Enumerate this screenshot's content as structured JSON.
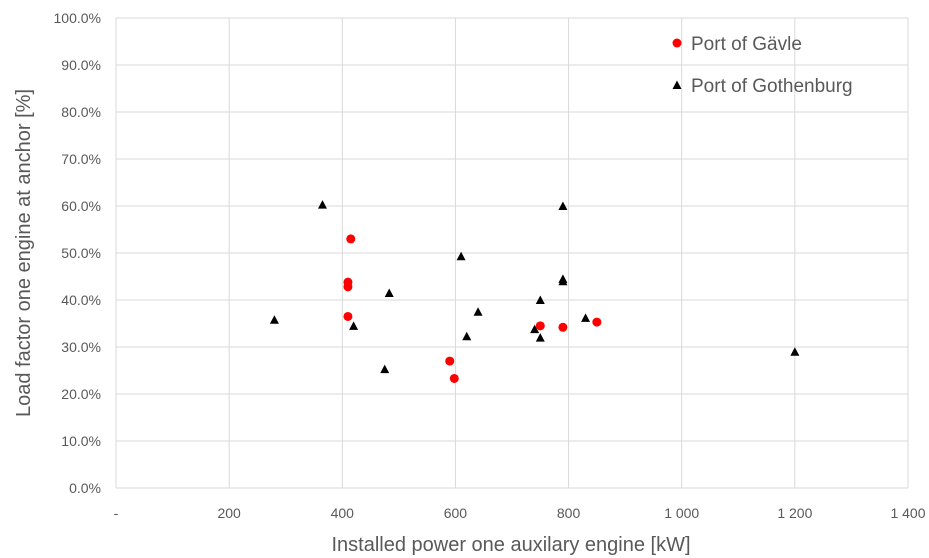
{
  "chart_data": {
    "type": "scatter",
    "xlabel": "Installed power one auxilary engine [kW]",
    "ylabel": "Load factor one engine at anchor [%]",
    "xlim": [
      0,
      1400
    ],
    "ylim": [
      0,
      100
    ],
    "x_ticks": [
      0,
      200,
      400,
      600,
      800,
      1000,
      1200,
      1400
    ],
    "x_tick_labels": [
      "-",
      "200",
      "400",
      "600",
      "800",
      "1 000",
      "1 200",
      "1 400"
    ],
    "y_ticks": [
      0,
      10,
      20,
      30,
      40,
      50,
      60,
      70,
      80,
      90,
      100
    ],
    "y_tick_labels": [
      "0.0%",
      "10.0%",
      "20.0%",
      "30.0%",
      "40.0%",
      "50.0%",
      "60.0%",
      "70.0%",
      "80.0%",
      "90.0%",
      "100.0%"
    ],
    "grid": true,
    "legend_position": "top-right",
    "series": [
      {
        "name": "Port of Gävle",
        "marker": "circle",
        "color": "#ff0000",
        "points": [
          {
            "x": 415,
            "y": 53.0
          },
          {
            "x": 410,
            "y": 43.8
          },
          {
            "x": 410,
            "y": 42.8
          },
          {
            "x": 410,
            "y": 36.5
          },
          {
            "x": 590,
            "y": 27.0
          },
          {
            "x": 598,
            "y": 23.3
          },
          {
            "x": 750,
            "y": 34.5
          },
          {
            "x": 790,
            "y": 34.2
          },
          {
            "x": 850,
            "y": 35.3
          }
        ]
      },
      {
        "name": "Port of Gothenburg",
        "marker": "triangle",
        "color": "#000000",
        "points": [
          {
            "x": 280,
            "y": 35.8
          },
          {
            "x": 365,
            "y": 60.3
          },
          {
            "x": 420,
            "y": 34.5
          },
          {
            "x": 475,
            "y": 25.3
          },
          {
            "x": 483,
            "y": 41.5
          },
          {
            "x": 610,
            "y": 49.3
          },
          {
            "x": 620,
            "y": 32.3
          },
          {
            "x": 640,
            "y": 37.5
          },
          {
            "x": 740,
            "y": 33.8
          },
          {
            "x": 750,
            "y": 40.0
          },
          {
            "x": 750,
            "y": 32.0
          },
          {
            "x": 790,
            "y": 60.0
          },
          {
            "x": 790,
            "y": 44.5
          },
          {
            "x": 790,
            "y": 44.0
          },
          {
            "x": 830,
            "y": 36.2
          },
          {
            "x": 1200,
            "y": 29.0
          }
        ]
      }
    ]
  }
}
